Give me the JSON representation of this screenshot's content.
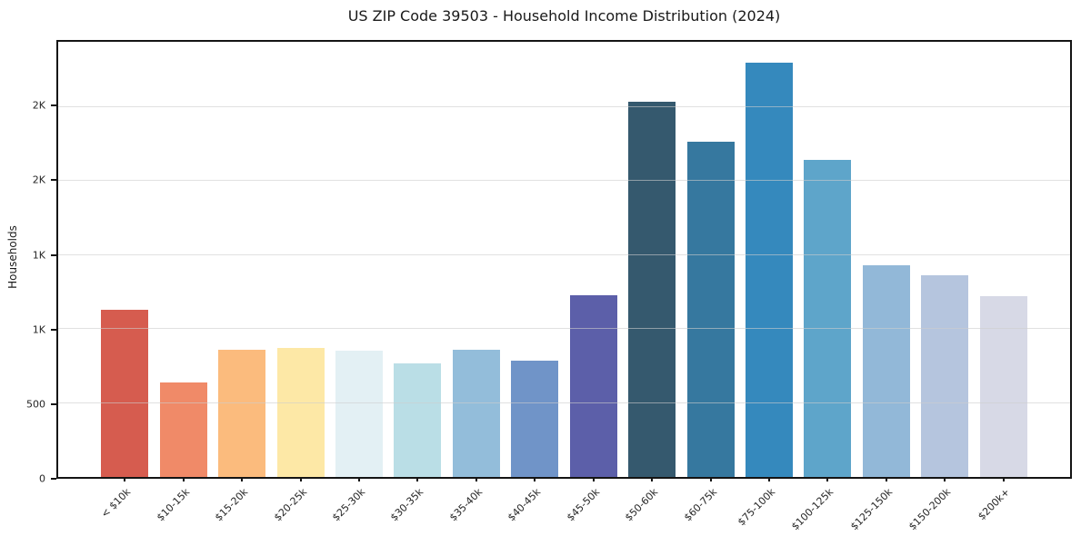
{
  "title": "US ZIP Code 39503 - Household Income Distribution (2024)",
  "chart_data": {
    "type": "bar",
    "title": "US ZIP Code 39503 - Household Income Distribution (2024)",
    "xlabel": "",
    "ylabel": "Households",
    "categories": [
      "< $10k",
      "$10-15k",
      "$15-20k",
      "$20-25k",
      "$25-30k",
      "$30-35k",
      "$35-40k",
      "$40-45k",
      "$45-50k",
      "$50-60k",
      "$60-75k",
      "$75-100k",
      "$100-125k",
      "$125-150k",
      "$150-200k",
      "$200k+"
    ],
    "values": [
      1130,
      640,
      860,
      870,
      855,
      770,
      860,
      785,
      1230,
      2535,
      2265,
      2800,
      2145,
      1430,
      1360,
      1220
    ],
    "bar_colors": [
      "#d65c4f",
      "#f08a68",
      "#fbbb7d",
      "#fde8a6",
      "#e3f0f4",
      "#badee6",
      "#93bdda",
      "#7094c8",
      "#5c5fa9",
      "#35596e",
      "#36789f",
      "#3589bd",
      "#5ea5ca",
      "#92b8d8",
      "#b5c5de",
      "#d7d9e6"
    ],
    "ylim": [
      0,
      2940
    ],
    "yticks": [
      {
        "value": 0,
        "label": "0"
      },
      {
        "value": 500,
        "label": "500"
      },
      {
        "value": 1000,
        "label": "1K"
      },
      {
        "value": 1500,
        "label": "1K"
      },
      {
        "value": 2000,
        "label": "2K"
      },
      {
        "value": 2500,
        "label": "2K"
      }
    ],
    "grid": "horizontal",
    "legend": "none",
    "colors": {
      "background": "#ffffff",
      "spine": "#141414",
      "grid": "#e7e7e7",
      "tick_text": "#262626",
      "title_text": "#1a1a1a"
    }
  }
}
